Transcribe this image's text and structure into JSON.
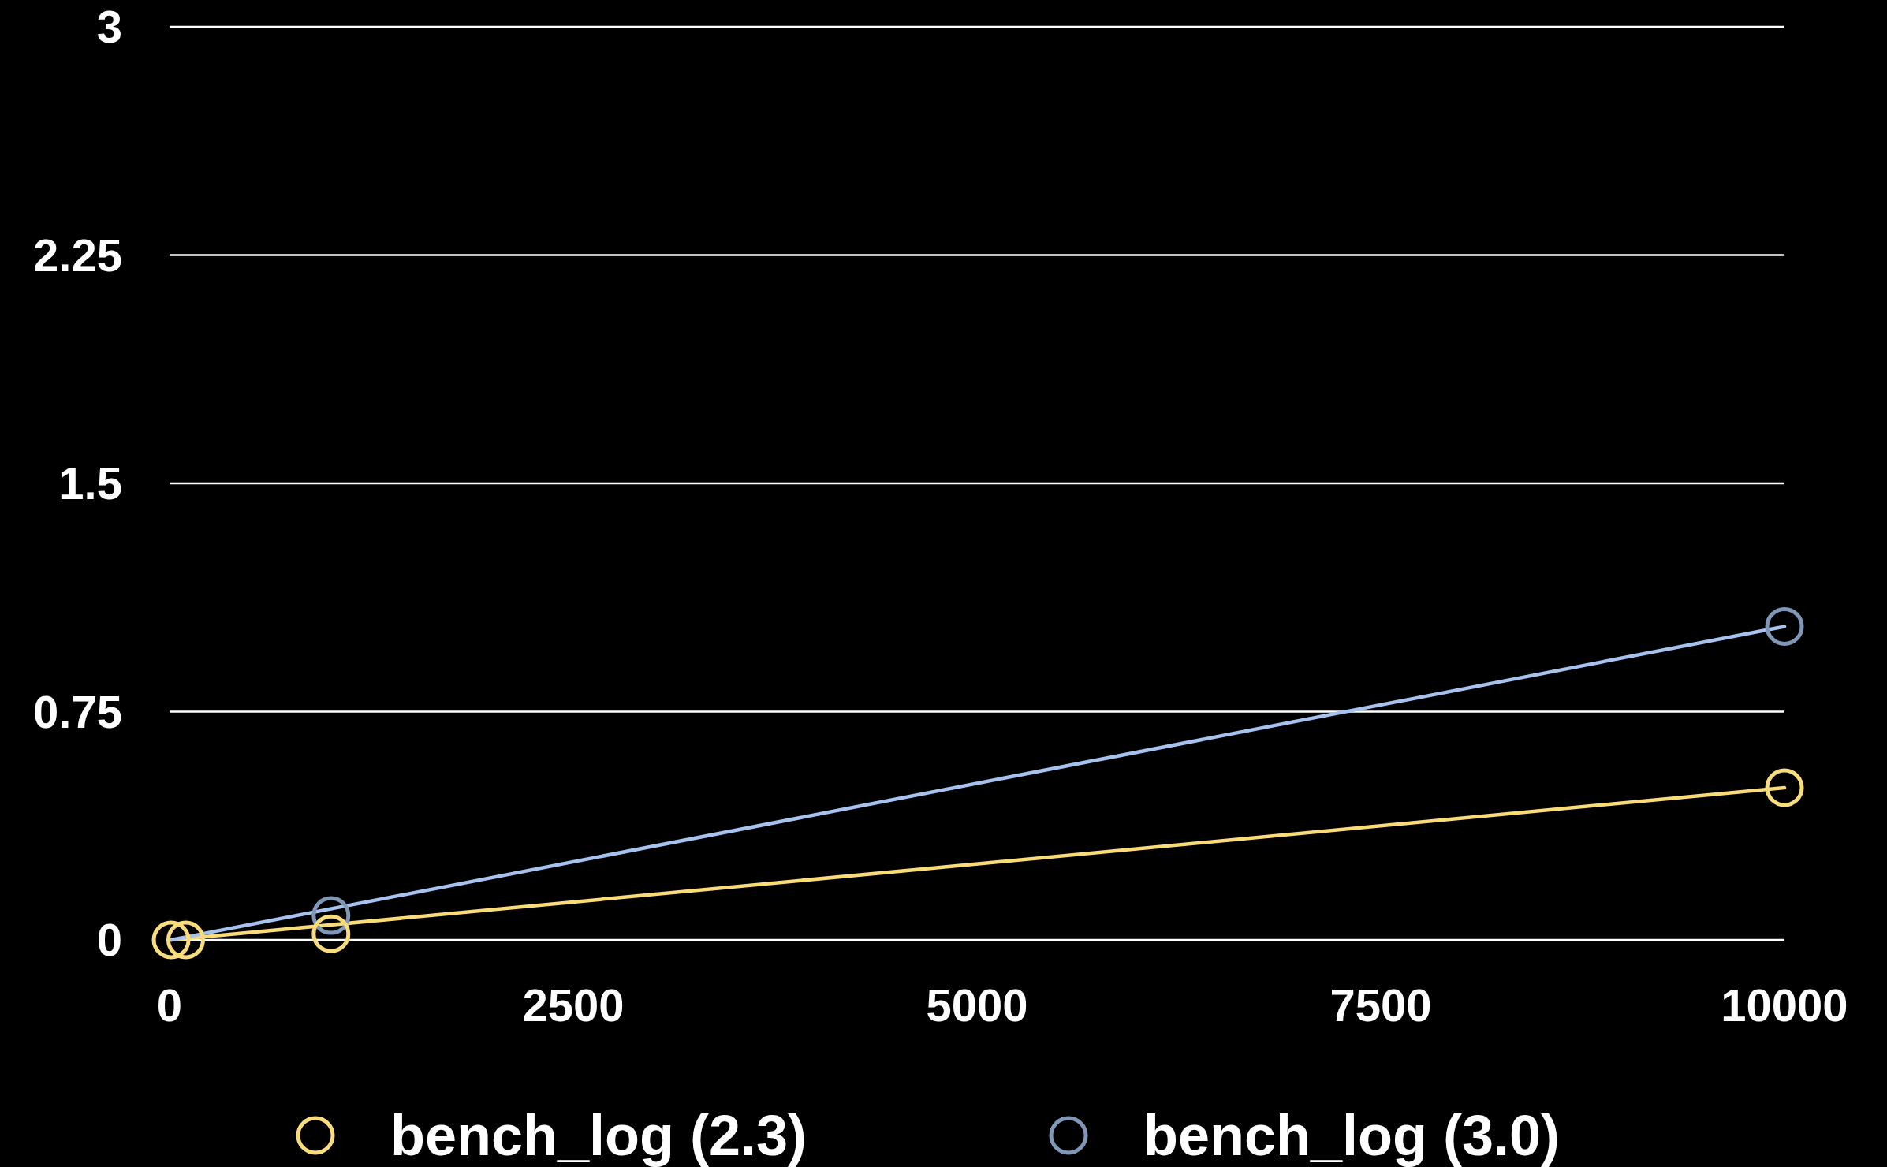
{
  "chart_data": {
    "type": "scatter",
    "xlim": [
      0,
      10000
    ],
    "xticks": [
      0,
      2500,
      5000,
      7500,
      10000
    ],
    "ylim": [
      0,
      3
    ],
    "yticks": [
      0,
      0.75,
      1.5,
      2.25,
      3
    ],
    "grid": "y",
    "legend": "bottom",
    "marker": "circle",
    "series": [
      {
        "name": "bench_log (2.3)",
        "color": "#f9dc7b",
        "x": [
          10,
          100,
          1000,
          10000
        ],
        "values": [
          0,
          0,
          0.02,
          0.5
        ]
      },
      {
        "name": "bench_log (3.0)",
        "color": "#8098b8",
        "x": [
          1000,
          10000
        ],
        "values": [
          0.08,
          1.03
        ]
      },
      {
        "type": "line",
        "marker": "none",
        "color": "#f9dc78",
        "x": [
          10,
          10000
        ],
        "values": [
          0,
          0.5
        ]
      },
      {
        "type": "line",
        "marker": "none",
        "color": "#a6c2ee",
        "x": [
          10,
          10000
        ],
        "values": [
          0,
          1.03
        ]
      }
    ]
  }
}
